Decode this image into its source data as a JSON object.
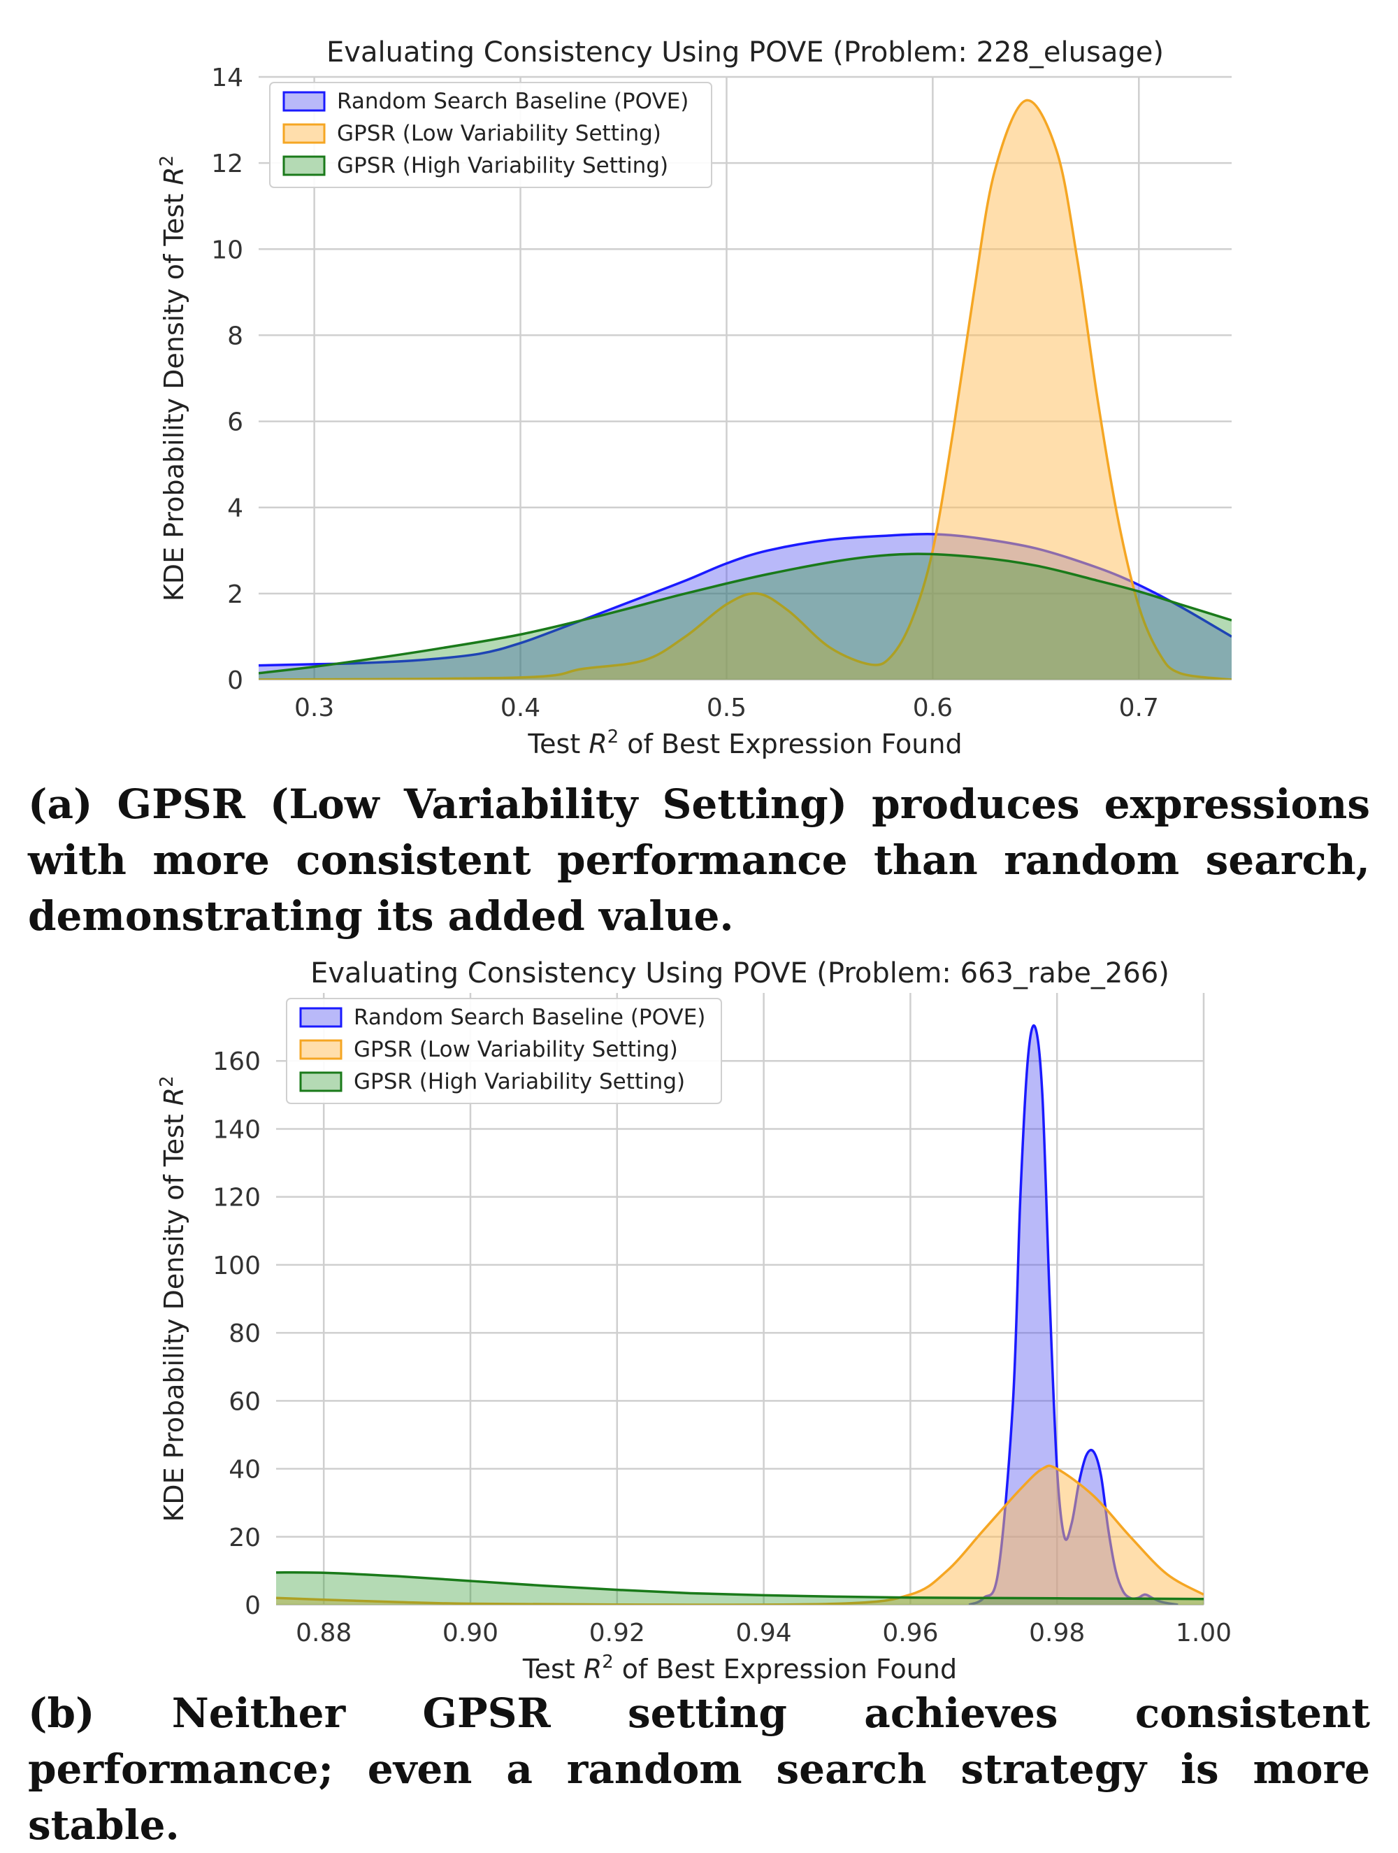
{
  "chart_data": [
    {
      "type": "area",
      "title": "Evaluating Consistency Using POVE (Problem: 228_elusage)",
      "xlabel": "Test R² of Best Expression Found",
      "ylabel": "KDE Probability Density of Test R²",
      "xlim": [
        0.273,
        0.745
      ],
      "ylim": [
        0,
        14
      ],
      "xticks": [
        0.3,
        0.4,
        0.5,
        0.6,
        0.7
      ],
      "xtick_labels": [
        "0.3",
        "0.4",
        "0.5",
        "0.6",
        "0.7"
      ],
      "yticks": [
        0,
        2,
        4,
        6,
        8,
        10,
        12,
        14
      ],
      "ytick_labels": [
        "0",
        "2",
        "4",
        "6",
        "8",
        "10",
        "12",
        "14"
      ],
      "grid": true,
      "legend_position": "top-left",
      "series": [
        {
          "name": "Random Search Baseline (POVE)",
          "color": "#1a1aff",
          "fill": "rgba(80,80,240,0.40)",
          "x": [
            0.273,
            0.3,
            0.32,
            0.35,
            0.38,
            0.4,
            0.42,
            0.45,
            0.48,
            0.5,
            0.52,
            0.55,
            0.58,
            0.6,
            0.62,
            0.65,
            0.68,
            0.7,
            0.72,
            0.745
          ],
          "y": [
            0.33,
            0.36,
            0.38,
            0.45,
            0.6,
            0.85,
            1.2,
            1.75,
            2.3,
            2.7,
            3.0,
            3.25,
            3.35,
            3.38,
            3.3,
            3.05,
            2.6,
            2.2,
            1.7,
            1.0
          ]
        },
        {
          "name": "GPSR (Low Variability Setting)",
          "color": "#f5a623",
          "fill": "rgba(255,190,90,0.50)",
          "x": [
            0.273,
            0.4,
            0.43,
            0.46,
            0.48,
            0.5,
            0.515,
            0.53,
            0.55,
            0.57,
            0.58,
            0.59,
            0.6,
            0.61,
            0.62,
            0.63,
            0.645,
            0.66,
            0.67,
            0.68,
            0.69,
            0.7,
            0.71,
            0.72,
            0.745
          ],
          "y": [
            0.0,
            0.05,
            0.25,
            0.45,
            1.0,
            1.75,
            2.0,
            1.6,
            0.75,
            0.35,
            0.55,
            1.4,
            3.0,
            5.8,
            9.0,
            11.8,
            13.45,
            12.3,
            9.8,
            6.5,
            3.7,
            1.7,
            0.6,
            0.15,
            0.0
          ]
        },
        {
          "name": "GPSR (High Variability Setting)",
          "color": "#1a7a1a",
          "fill": "rgba(40,150,40,0.35)",
          "x": [
            0.273,
            0.3,
            0.33,
            0.36,
            0.4,
            0.44,
            0.48,
            0.52,
            0.56,
            0.59,
            0.62,
            0.65,
            0.68,
            0.7,
            0.72,
            0.745
          ],
          "y": [
            0.15,
            0.3,
            0.5,
            0.72,
            1.05,
            1.5,
            2.0,
            2.45,
            2.8,
            2.92,
            2.85,
            2.65,
            2.3,
            2.05,
            1.75,
            1.38
          ]
        }
      ]
    },
    {
      "type": "area",
      "title": "Evaluating Consistency Using POVE (Problem: 663_rabe_266)",
      "xlabel": "Test R² of Best Expression Found",
      "ylabel": "KDE Probability Density of Test R²",
      "xlim": [
        0.8735,
        1.0
      ],
      "ylim": [
        0,
        180
      ],
      "xticks": [
        0.88,
        0.9,
        0.92,
        0.94,
        0.96,
        0.98,
        1.0
      ],
      "xtick_labels": [
        "0.88",
        "0.90",
        "0.92",
        "0.94",
        "0.96",
        "0.98",
        "1.00"
      ],
      "yticks": [
        0,
        20,
        40,
        60,
        80,
        100,
        120,
        140,
        160
      ],
      "ytick_labels": [
        "0",
        "20",
        "40",
        "60",
        "80",
        "100",
        "120",
        "140",
        "160"
      ],
      "grid": true,
      "legend_position": "top-left",
      "series": [
        {
          "name": "Random Search Baseline (POVE)",
          "color": "#1a1aff",
          "fill": "rgba(80,80,240,0.40)",
          "x": [
            0.968,
            0.97,
            0.972,
            0.974,
            0.975,
            0.976,
            0.977,
            0.978,
            0.979,
            0.98,
            0.981,
            0.982,
            0.983,
            0.984,
            0.985,
            0.986,
            0.987,
            0.988,
            0.989,
            0.99,
            0.991,
            0.992,
            0.993,
            0.994,
            0.995,
            0.9965
          ],
          "y": [
            0,
            2,
            10,
            60,
            120,
            160,
            170,
            150,
            90,
            40,
            20,
            24,
            36,
            44,
            45,
            38,
            22,
            10,
            4,
            2,
            2,
            3,
            2,
            1,
            0.5,
            0
          ]
        },
        {
          "name": "GPSR (Low Variability Setting)",
          "color": "#f5a623",
          "fill": "rgba(255,190,90,0.50)",
          "x": [
            0.8735,
            0.88,
            0.89,
            0.9,
            0.92,
            0.95,
            0.96,
            0.965,
            0.97,
            0.975,
            0.978,
            0.98,
            0.985,
            0.99,
            0.995,
            1.0
          ],
          "y": [
            2.0,
            1.5,
            0.8,
            0.3,
            0.05,
            0.3,
            3,
            10,
            22,
            34,
            40,
            40,
            32,
            20,
            9,
            3
          ]
        },
        {
          "name": "GPSR (High Variability Setting)",
          "color": "#1a7a1a",
          "fill": "rgba(40,150,40,0.35)",
          "x": [
            0.8735,
            0.88,
            0.89,
            0.9,
            0.91,
            0.92,
            0.93,
            0.94,
            0.95,
            0.96,
            0.97,
            0.98,
            0.99,
            1.0
          ],
          "y": [
            9.5,
            9.4,
            8.4,
            7.0,
            5.6,
            4.4,
            3.4,
            2.8,
            2.4,
            2.1,
            2.0,
            1.9,
            1.8,
            1.7
          ]
        }
      ]
    }
  ],
  "captions": {
    "a": "(a) GPSR (Low Variability Setting) produces expressions with more consistent performance than random search, demonstrating its added value.",
    "b": "(b) Neither GPSR setting achieves consistent performance; even a random search strategy is more stable."
  }
}
